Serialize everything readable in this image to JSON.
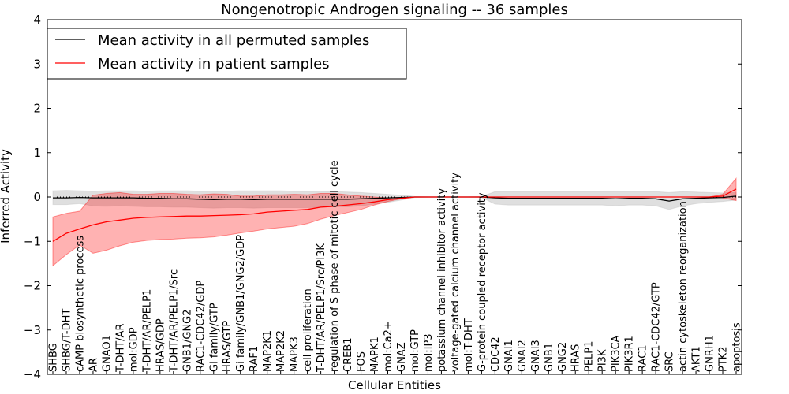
{
  "chart_data": {
    "type": "line",
    "title": "Nongenotropic Androgen signaling -- 36 samples",
    "xlabel": "Cellular Entities",
    "ylabel": "Inferred Activity",
    "ylim": [
      -4,
      4
    ],
    "yticks": [
      -4,
      -3,
      -2,
      -1,
      0,
      1,
      2,
      3,
      4
    ],
    "ytick_labels": [
      "−4",
      "−3",
      "−2",
      "−1",
      "0",
      "1",
      "2",
      "3",
      "4"
    ],
    "legend_position": "top-left",
    "categories": [
      "SHBG",
      "SHBG/T-DHT",
      "cAMP biosynthetic process",
      "AR",
      "GNAO1",
      "T-DHT/AR",
      "mol:GDP",
      "T-DHT/AR/PELP1",
      "HRAS/GDP",
      "T-DHT/AR/PELP1/Src",
      "GNB1/GNG2",
      "RAC1-CDC42/GDP",
      "Gi family/GTP",
      "HRAS/GTP",
      "Gi family/GNB1/GNG2/GDP",
      "RAF1",
      "MAP2K1",
      "MAP2K2",
      "MAPK3",
      "cell proliferation",
      "T-DHT/AR/PELP1/Src/PI3K",
      "regulation of S phase of mitotic cell cycle",
      "CREB1",
      "FOS",
      "MAPK1",
      "mol:Ca2+",
      "GNAZ",
      "mol:GTP",
      "mol:IP3",
      "potassium channel inhibitor activity",
      "voltage-gated calcium channel activity",
      "mol:T-DHT",
      "G-protein coupled receptor activity",
      "CDC42",
      "GNAI1",
      "GNAI2",
      "GNAI3",
      "GNB1",
      "GNG2",
      "HRAS",
      "PELP1",
      "PI3K",
      "PIK3CA",
      "PIK3R1",
      "RAC1",
      "RAC1-CDC42/GTP",
      "SRC",
      "actin cytoskeleton reorganization",
      "AKT1",
      "GNRH1",
      "PTK2",
      "apoptosis"
    ],
    "series": [
      {
        "name": "Mean activity in all permuted samples",
        "color": "#000000",
        "band_color": "#bfbfbf",
        "values": [
          -0.02,
          -0.02,
          -0.01,
          -0.02,
          -0.02,
          -0.02,
          -0.02,
          -0.03,
          -0.03,
          -0.04,
          -0.04,
          -0.05,
          -0.06,
          -0.05,
          -0.05,
          -0.06,
          -0.05,
          -0.05,
          -0.05,
          -0.05,
          -0.05,
          -0.05,
          -0.05,
          -0.04,
          -0.03,
          -0.02,
          -0.01,
          0,
          0,
          0,
          0,
          0,
          0,
          -0.02,
          -0.03,
          -0.03,
          -0.03,
          -0.03,
          -0.03,
          -0.03,
          -0.03,
          -0.03,
          -0.04,
          -0.03,
          -0.03,
          -0.04,
          -0.09,
          -0.04,
          -0.03,
          -0.02,
          -0.01,
          0.02
        ],
        "lower": [
          -0.17,
          -0.17,
          -0.15,
          -0.2,
          -0.21,
          -0.2,
          -0.21,
          -0.22,
          -0.22,
          -0.23,
          -0.23,
          -0.24,
          -0.25,
          -0.24,
          -0.24,
          -0.25,
          -0.24,
          -0.24,
          -0.24,
          -0.24,
          -0.23,
          -0.22,
          -0.22,
          -0.2,
          -0.16,
          -0.12,
          -0.07,
          -0.01,
          0,
          0,
          0,
          0,
          -0.01,
          -0.16,
          -0.18,
          -0.18,
          -0.18,
          -0.18,
          -0.18,
          -0.18,
          -0.18,
          -0.18,
          -0.2,
          -0.18,
          -0.18,
          -0.2,
          -0.28,
          -0.2,
          -0.15,
          -0.12,
          -0.1,
          -0.07
        ],
        "upper": [
          0.14,
          0.15,
          0.14,
          0.13,
          0.14,
          0.14,
          0.14,
          0.13,
          0.14,
          0.14,
          0.14,
          0.13,
          0.13,
          0.13,
          0.14,
          0.14,
          0.14,
          0.14,
          0.13,
          0.13,
          0.13,
          0.12,
          0.11,
          0.1,
          0.08,
          0.06,
          0.04,
          0.01,
          0,
          0,
          0,
          0,
          0.01,
          0.12,
          0.12,
          0.12,
          0.12,
          0.12,
          0.12,
          0.12,
          0.12,
          0.12,
          0.12,
          0.12,
          0.12,
          0.12,
          0.1,
          0.12,
          0.11,
          0.1,
          0.09,
          0.1
        ]
      },
      {
        "name": "Mean activity in patient samples",
        "color": "#ff0000",
        "band_color": "#ff0000",
        "values": [
          -1.0,
          -0.82,
          -0.72,
          -0.63,
          -0.56,
          -0.52,
          -0.48,
          -0.46,
          -0.45,
          -0.44,
          -0.43,
          -0.43,
          -0.42,
          -0.41,
          -0.4,
          -0.38,
          -0.34,
          -0.32,
          -0.3,
          -0.28,
          -0.23,
          -0.21,
          -0.18,
          -0.15,
          -0.11,
          -0.06,
          -0.03,
          0,
          0,
          0,
          0,
          0,
          0,
          0,
          0,
          0,
          0,
          0,
          0,
          0,
          0,
          0,
          0,
          0,
          0,
          0,
          0,
          0,
          0,
          0,
          0.02,
          0.18
        ],
        "lower": [
          -1.55,
          -1.3,
          -1.08,
          -1.27,
          -1.2,
          -1.1,
          -1.02,
          -0.98,
          -0.96,
          -0.95,
          -0.93,
          -0.92,
          -0.9,
          -0.86,
          -0.81,
          -0.77,
          -0.72,
          -0.69,
          -0.66,
          -0.6,
          -0.5,
          -0.42,
          -0.35,
          -0.28,
          -0.18,
          -0.1,
          -0.04,
          0,
          0,
          0,
          0,
          0,
          0,
          0,
          0,
          0,
          0,
          0,
          0,
          0,
          0,
          0,
          0,
          0,
          0,
          0,
          0,
          0,
          0,
          0,
          -0.02,
          -0.08
        ],
        "upper": [
          -0.45,
          -0.37,
          -0.32,
          0.04,
          0.08,
          0.1,
          0.06,
          0.06,
          0.08,
          0.08,
          0.06,
          0.05,
          0.07,
          0.06,
          0.02,
          0.02,
          0.05,
          0.05,
          0.06,
          0.05,
          0.08,
          0.08,
          0.05,
          0.02,
          0.0,
          -0.02,
          -0.01,
          0,
          0,
          0,
          0,
          0,
          0,
          0,
          0,
          0,
          0,
          0,
          0,
          0,
          0,
          0,
          0,
          0,
          0,
          0,
          0,
          0,
          0,
          0,
          0.06,
          0.42
        ]
      }
    ],
    "reference_line": 0
  }
}
